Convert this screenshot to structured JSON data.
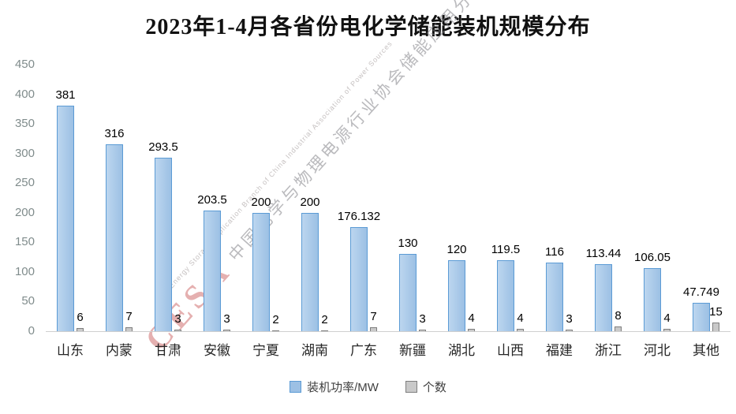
{
  "title": "2023年1-4月各省份电化学储能装机规模分布",
  "watermark": {
    "cesa": "CESA",
    "cn": "中国化学与物理电源行业协会储能应用分会",
    "en": "Energy Storage Application Branch of China Industrial Association of Power Sources"
  },
  "chart_data": {
    "type": "bar",
    "title": "2023年1-4月各省份电化学储能装机规模分布",
    "categories": [
      "山东",
      "内蒙",
      "甘肃",
      "安徽",
      "宁夏",
      "湖南",
      "广东",
      "新疆",
      "湖北",
      "山西",
      "福建",
      "浙江",
      "河北",
      "其他"
    ],
    "series": [
      {
        "name": "装机功率/MW",
        "color": "#9cc0e4",
        "border": "#5b9bd5",
        "values": [
          381,
          316,
          293.5,
          203.5,
          200,
          200,
          176.132,
          130,
          120,
          119.5,
          116,
          113.44,
          106.05,
          47.749
        ],
        "labels": [
          "381",
          "316",
          "293.5",
          "203.5",
          "200",
          "200",
          "176.132",
          "130",
          "120",
          "119.5",
          "116",
          "113.44",
          "106.05",
          "47.749"
        ]
      },
      {
        "name": "个数",
        "color": "#c9c9c9",
        "border": "#7f7f7f",
        "values": [
          6,
          7,
          3,
          3,
          2,
          2,
          7,
          3,
          4,
          4,
          3,
          8,
          4,
          15
        ],
        "labels": [
          "6",
          "7",
          "3",
          "3",
          "2",
          "2",
          "7",
          "3",
          "4",
          "4",
          "3",
          "8",
          "4",
          "15"
        ]
      }
    ],
    "ylabel": "",
    "xlabel": "",
    "ylim": [
      0,
      450
    ],
    "yticks": [
      450,
      400,
      350,
      300,
      250,
      200,
      150,
      100,
      50,
      0
    ],
    "grid": false,
    "legend_position": "bottom"
  }
}
